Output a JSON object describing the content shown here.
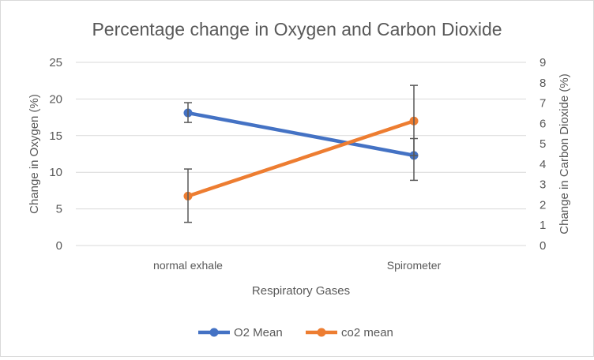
{
  "chart_data": {
    "type": "line",
    "title": "Percentage change in Oxygen and Carbon Dioxide",
    "xlabel": "Respiratory Gases",
    "ylabel": "Change in Oxygen (%)",
    "y2label": "Change in Carbon Dioxide (%)",
    "categories": [
      "normal exhale",
      "Spirometer"
    ],
    "ylim": [
      0,
      25
    ],
    "yticks": [
      "0",
      "5",
      "10",
      "15",
      "20",
      "25"
    ],
    "y2lim": [
      0,
      9
    ],
    "y2ticks": [
      "0",
      "1",
      "2",
      "3",
      "4",
      "5",
      "6",
      "7",
      "8",
      "9"
    ],
    "grid": true,
    "legend_position": "bottom",
    "series": [
      {
        "name": "O2 Mean",
        "axis": "left",
        "color": "#4472c4",
        "values": [
          18.1,
          12.3
        ],
        "err_plus": [
          1.4,
          2.3
        ],
        "err_minus": [
          1.3,
          3.4
        ]
      },
      {
        "name": "co2 mean",
        "axis": "right",
        "color": "#ed7d31",
        "values": [
          2.43,
          6.12
        ],
        "err_plus": [
          1.33,
          1.75
        ],
        "err_minus": [
          1.29,
          1.7
        ]
      }
    ]
  }
}
